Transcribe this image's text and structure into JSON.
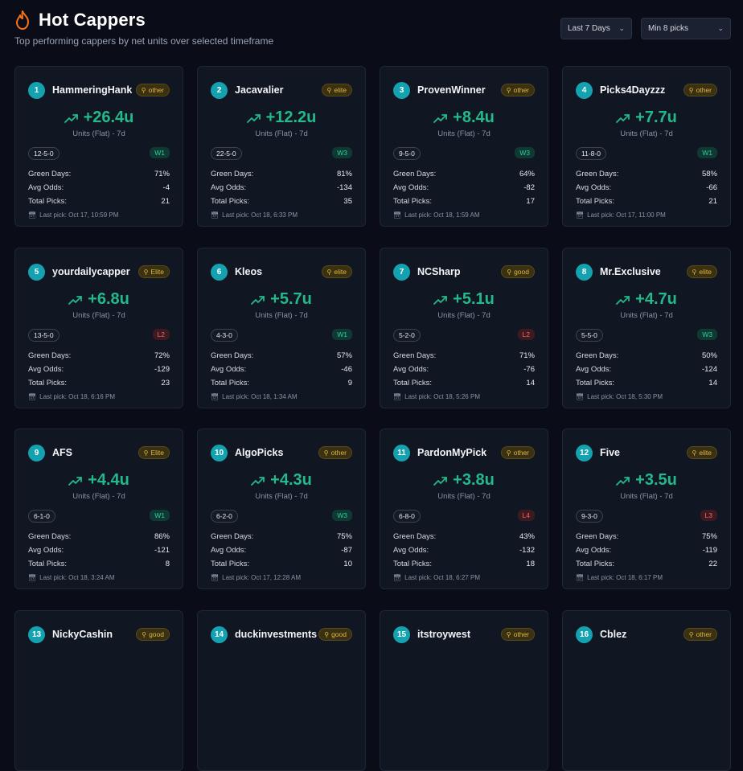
{
  "header": {
    "title": "Hot Cappers",
    "subtitle": "Top performing cappers by net units over selected timeframe",
    "icon": "flame-icon",
    "accent": "#f97316"
  },
  "filters": {
    "timeframe": "Last 7 Days",
    "min_picks": "Min 8 picks"
  },
  "labels": {
    "units_label": "Units (Flat) - 7d",
    "green_days": "Green Days:",
    "avg_odds": "Avg Odds:",
    "total_picks": "Total Picks:"
  },
  "colors": {
    "rank_badge": "#14a2b0",
    "units_positive": "#23b98a",
    "tier": "#e0b840",
    "streak_win": "#2fcf9a",
    "streak_loss": "#f06a6a"
  },
  "cappers": [
    {
      "rank": "1",
      "name": "HammeringHank",
      "tier": "other",
      "units": "+26.4u",
      "record": "12-5-0",
      "streak": "W1",
      "streak_type": "win",
      "green_days": "71%",
      "avg_odds": "-4",
      "total_picks": "21",
      "last_pick": "Last pick: Oct 17, 10:59 PM"
    },
    {
      "rank": "2",
      "name": "Jacavalier",
      "tier": "elite",
      "units": "+12.2u",
      "record": "22-5-0",
      "streak": "W3",
      "streak_type": "win",
      "green_days": "81%",
      "avg_odds": "-134",
      "total_picks": "35",
      "last_pick": "Last pick: Oct 18, 6:33 PM"
    },
    {
      "rank": "3",
      "name": "ProvenWinner",
      "tier": "other",
      "units": "+8.4u",
      "record": "9-5-0",
      "streak": "W3",
      "streak_type": "win",
      "green_days": "64%",
      "avg_odds": "-82",
      "total_picks": "17",
      "last_pick": "Last pick: Oct 18, 1:59 AM"
    },
    {
      "rank": "4",
      "name": "Picks4Dayzzz",
      "tier": "other",
      "units": "+7.7u",
      "record": "11-8-0",
      "streak": "W1",
      "streak_type": "win",
      "green_days": "58%",
      "avg_odds": "-66",
      "total_picks": "21",
      "last_pick": "Last pick: Oct 17, 11:00 PM"
    },
    {
      "rank": "5",
      "name": "yourdailycapper",
      "tier": "Elite",
      "units": "+6.8u",
      "record": "13-5-0",
      "streak": "L2",
      "streak_type": "loss",
      "green_days": "72%",
      "avg_odds": "-129",
      "total_picks": "23",
      "last_pick": "Last pick: Oct 18, 6:16 PM"
    },
    {
      "rank": "6",
      "name": "Kleos",
      "tier": "elite",
      "units": "+5.7u",
      "record": "4-3-0",
      "streak": "W1",
      "streak_type": "win",
      "green_days": "57%",
      "avg_odds": "-46",
      "total_picks": "9",
      "last_pick": "Last pick: Oct 18, 1:34 AM"
    },
    {
      "rank": "7",
      "name": "NCSharp",
      "tier": "good",
      "units": "+5.1u",
      "record": "5-2-0",
      "streak": "L2",
      "streak_type": "loss",
      "green_days": "71%",
      "avg_odds": "-76",
      "total_picks": "14",
      "last_pick": "Last pick: Oct 18, 5:26 PM"
    },
    {
      "rank": "8",
      "name": "Mr.Exclusive",
      "tier": "elite",
      "units": "+4.7u",
      "record": "5-5-0",
      "streak": "W3",
      "streak_type": "win",
      "green_days": "50%",
      "avg_odds": "-124",
      "total_picks": "14",
      "last_pick": "Last pick: Oct 18, 5:30 PM"
    },
    {
      "rank": "9",
      "name": "AFS",
      "tier": "Elite",
      "units": "+4.4u",
      "record": "6-1-0",
      "streak": "W1",
      "streak_type": "win",
      "green_days": "86%",
      "avg_odds": "-121",
      "total_picks": "8",
      "last_pick": "Last pick: Oct 18, 3:24 AM"
    },
    {
      "rank": "10",
      "name": "AlgoPicks",
      "tier": "other",
      "units": "+4.3u",
      "record": "6-2-0",
      "streak": "W3",
      "streak_type": "win",
      "green_days": "75%",
      "avg_odds": "-87",
      "total_picks": "10",
      "last_pick": "Last pick: Oct 17, 12:28 AM"
    },
    {
      "rank": "11",
      "name": "PardonMyPick",
      "tier": "other",
      "units": "+3.8u",
      "record": "6-8-0",
      "streak": "L4",
      "streak_type": "loss",
      "green_days": "43%",
      "avg_odds": "-132",
      "total_picks": "18",
      "last_pick": "Last pick: Oct 18, 6:27 PM"
    },
    {
      "rank": "12",
      "name": "Five",
      "tier": "elite",
      "units": "+3.5u",
      "record": "9-3-0",
      "streak": "L3",
      "streak_type": "loss",
      "green_days": "75%",
      "avg_odds": "-119",
      "total_picks": "22",
      "last_pick": "Last pick: Oct 18, 6:17 PM"
    },
    {
      "rank": "13",
      "name": "NickyCashin",
      "tier": "good"
    },
    {
      "rank": "14",
      "name": "duckinvestments",
      "tier": "good"
    },
    {
      "rank": "15",
      "name": "itstroywest",
      "tier": "other"
    },
    {
      "rank": "16",
      "name": "Cblez",
      "tier": "other"
    }
  ]
}
